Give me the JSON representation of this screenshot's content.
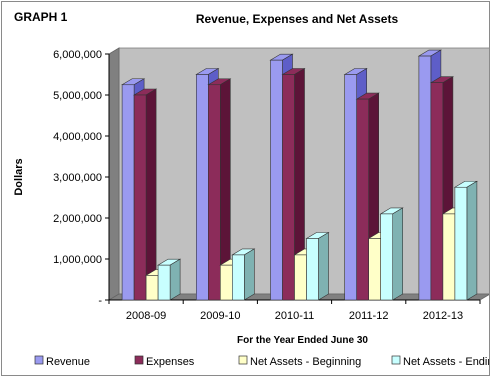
{
  "graph_label": "GRAPH 1",
  "colors": {
    "revenue_front": "#9a9af0",
    "revenue_side": "#5e5ec8",
    "expenses_front": "#8c2c5a",
    "expenses_side": "#5c1438",
    "nab_front": "#ffffc8",
    "nab_side": "#c8c88a",
    "nae_front": "#c8ffff",
    "nae_side": "#7fb2b2",
    "wall": "#c0c0c0",
    "floor": "#808080"
  },
  "chart_data": {
    "type": "bar",
    "title": "Revenue, Expenses and Net Assets",
    "xlabel": "For the Year Ended June 30",
    "ylabel": "Dollars",
    "ylim": [
      0,
      6000000
    ],
    "yticks": [
      0,
      1000000,
      2000000,
      3000000,
      4000000,
      5000000,
      6000000
    ],
    "ytick_labels": [
      "-",
      "1,000,000",
      "2,000,000",
      "3,000,000",
      "4,000,000",
      "5,000,000",
      "6,000,000"
    ],
    "categories": [
      "2008-09",
      "2009-10",
      "2010-11",
      "2011-12",
      "2012-13"
    ],
    "series": [
      {
        "name": "Revenue",
        "values": [
          5250000,
          5500000,
          5850000,
          5500000,
          5950000
        ]
      },
      {
        "name": "Expenses",
        "values": [
          5000000,
          5250000,
          5500000,
          4900000,
          5300000
        ]
      },
      {
        "name": "Net Assets - Beginning",
        "values": [
          600000,
          850000,
          1100000,
          1500000,
          2100000
        ]
      },
      {
        "name": "Net Assets - Ending",
        "values": [
          850000,
          1100000,
          1500000,
          2100000,
          2750000
        ]
      }
    ],
    "grid": false,
    "legend_position": "bottom"
  }
}
